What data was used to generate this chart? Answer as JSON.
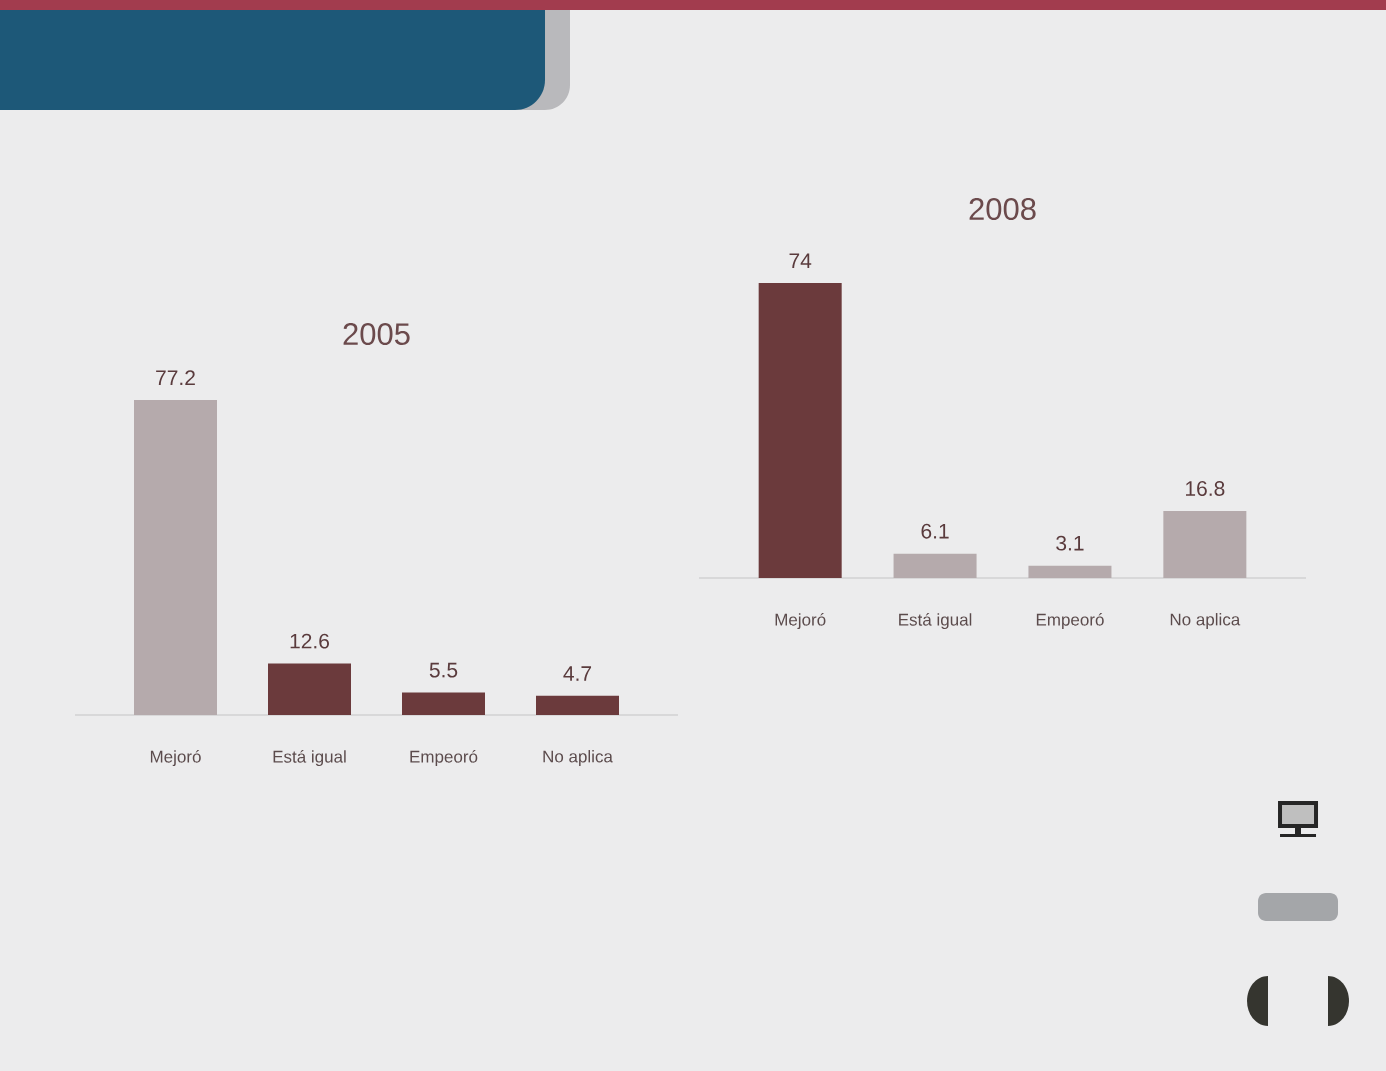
{
  "chart_data": [
    {
      "type": "bar",
      "title": "2005",
      "categories": [
        "Mejoró",
        "Está igual",
        "Empeoró",
        "No aplica"
      ],
      "values": [
        77.2,
        12.6,
        5.5,
        4.7
      ],
      "colors": [
        "#b5aaac",
        "#6b3a3c",
        "#6b3a3c",
        "#6b3a3c"
      ],
      "data_labels": true
    },
    {
      "type": "bar",
      "title": "2008",
      "categories": [
        "Mejoró",
        "Está igual",
        "Empeoró",
        "No aplica"
      ],
      "values": [
        74,
        6.1,
        3.1,
        16.8
      ],
      "colors": [
        "#6b3a3c",
        "#b5aaac",
        "#b5aaac",
        "#b5aaac"
      ],
      "data_labels": true
    }
  ]
}
